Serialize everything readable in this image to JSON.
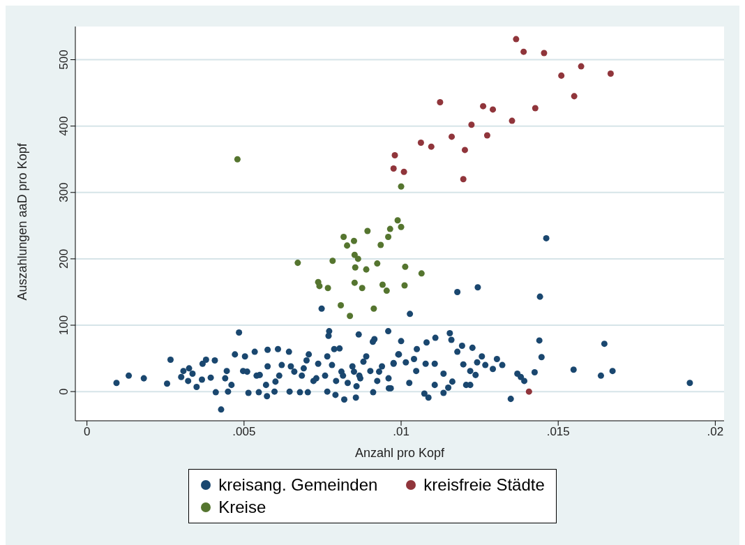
{
  "chart_data": {
    "type": "scatter",
    "xlabel": "Anzahl pro Kopf",
    "ylabel": "Auszahlungen aaD pro Kopf",
    "xlim": [
      -0.00037,
      0.02028
    ],
    "ylim": [
      -44,
      550
    ],
    "xticks": [
      0,
      {
        "value": 0.005,
        "label": ".005"
      },
      {
        "value": 0.01,
        "label": ".01"
      },
      {
        "value": 0.015,
        "label": ".015"
      },
      {
        "value": 0.02,
        "label": ".02"
      }
    ],
    "yticks": [
      0,
      100,
      200,
      300,
      400,
      500
    ],
    "grid": "y",
    "legend": "bottom",
    "marker": "circle",
    "series": [
      {
        "name": "kreisang. Gemeinden",
        "color": "#1a476f",
        "x": [
          0.01462,
          0.01179,
          0.01244,
          0.01442,
          0.01028,
          0.00747,
          0.00484,
          0.00771,
          0.00769,
          0.00959,
          0.00865,
          0.00915,
          0.0091,
          0.0144,
          0.01647,
          0.01447,
          0.01549,
          0.01636,
          0.01673,
          0.01919,
          0.01349,
          0.01425,
          0.01392,
          0.0137,
          0.01381,
          0.01,
          0.01109,
          0.01081,
          0.01155,
          0.0116,
          0.0105,
          0.00991,
          0.01194,
          0.01227,
          0.01179,
          0.01257,
          0.01305,
          0.01322,
          0.01292,
          0.01242,
          0.01268,
          0.01198,
          0.01237,
          0.0122,
          0.01163,
          0.0115,
          0.01135,
          0.01207,
          0.0122,
          0.01087,
          0.01074,
          0.01026,
          0.01107,
          0.01107,
          0.01078,
          0.01048,
          0.00976,
          0.00967,
          0.01135,
          0.01041,
          0.01015,
          0.00094,
          0.00133,
          0.00181,
          0.00255,
          0.00266,
          0.00307,
          0.003,
          0.00325,
          0.00336,
          0.00322,
          0.00349,
          0.00368,
          0.00379,
          0.00407,
          0.00394,
          0.0041,
          0.00366,
          0.00427,
          0.00449,
          0.0046,
          0.00445,
          0.00471,
          0.00503,
          0.00534,
          0.00575,
          0.00608,
          0.00643,
          0.00497,
          0.00514,
          0.00547,
          0.00573,
          0.00597,
          0.0054,
          0.00575,
          0.00612,
          0.00649,
          0.00645,
          0.00678,
          0.00703,
          0.00706,
          0.00699,
          0.00736,
          0.00684,
          0.00721,
          0.00765,
          0.00787,
          0.00804,
          0.00765,
          0.00791,
          0.00819,
          0.00856,
          0.00858,
          0.00911,
          0.00961,
          0.00976,
          0.00993,
          0.00815,
          0.00845,
          0.00889,
          0.00902,
          0.00939,
          0.00867,
          0.00924,
          0.0083,
          0.00793,
          0.00758,
          0.0085,
          0.0088,
          0.0078,
          0.0066,
          0.006,
          0.0055,
          0.0062,
          0.0057,
          0.0069,
          0.0073,
          0.0081,
          0.0087,
          0.0093,
          0.0096,
          0.0051,
          0.0044
        ],
        "values": [
          231,
          150,
          157,
          143,
          117,
          125,
          89,
          91,
          84,
          91,
          86,
          79,
          75,
          77,
          72,
          52,
          33,
          24,
          31,
          13,
          -11,
          29,
          16,
          27,
          22,
          76,
          81,
          74,
          88,
          78,
          64,
          56,
          69,
          66,
          60,
          53,
          49,
          40,
          34,
          44,
          40,
          41,
          25,
          31,
          15,
          6,
          -2,
          10,
          10,
          -9,
          -3,
          13,
          10,
          42,
          42,
          31,
          42,
          5,
          27,
          49,
          44,
          13,
          24,
          20,
          12,
          48,
          31,
          22,
          35,
          27,
          16,
          7,
          42,
          48,
          47,
          21,
          -1,
          18,
          -27,
          0,
          10,
          31,
          56,
          53,
          60,
          63,
          64,
          60,
          31,
          -2,
          -1,
          -7,
          0,
          24,
          38,
          24,
          38,
          0,
          -1,
          -1,
          56,
          47,
          42,
          24,
          16,
          53,
          64,
          65,
          0,
          -5,
          -12,
          -9,
          8,
          -1,
          5,
          43,
          56,
          24,
          38,
          53,
          31,
          38,
          24,
          16,
          13,
          16,
          24,
          30,
          45,
          40,
          30,
          15,
          25,
          40,
          10,
          35,
          20,
          30,
          20,
          30,
          20,
          30,
          20
        ]
      },
      {
        "name": "kreisfreie Städte",
        "color": "#90353b",
        "x": [
          0.01366,
          0.0139,
          0.01455,
          0.01573,
          0.0151,
          0.01667,
          0.01551,
          0.01124,
          0.01261,
          0.01292,
          0.01427,
          0.01353,
          0.01224,
          0.01161,
          0.01274,
          0.01063,
          0.01096,
          0.01203,
          0.0098,
          0.00976,
          0.01009,
          0.01198,
          0.01407
        ],
        "values": [
          531,
          512,
          510,
          490,
          476,
          479,
          445,
          436,
          430,
          425,
          427,
          408,
          402,
          384,
          386,
          375,
          369,
          364,
          356,
          336,
          331,
          320,
          0
        ]
      },
      {
        "name": "Kreise",
        "color": "#55752f",
        "x": [
          0.00479,
          0.01,
          0.00817,
          0.0085,
          0.00828,
          0.00893,
          0.00959,
          0.00935,
          0.00852,
          0.00863,
          0.00924,
          0.00854,
          0.00889,
          0.00671,
          0.00782,
          0.00736,
          0.0074,
          0.00767,
          0.00852,
          0.00876,
          0.00941,
          0.00954,
          0.00808,
          0.00913,
          0.00837,
          0.00989,
          0.01,
          0.00965,
          0.01013,
          0.01011,
          0.01065
        ],
        "values": [
          350,
          309,
          233,
          227,
          220,
          242,
          233,
          221,
          206,
          200,
          193,
          187,
          184,
          194,
          197,
          165,
          159,
          156,
          164,
          156,
          161,
          152,
          130,
          125,
          114,
          258,
          248,
          245,
          188,
          160,
          178
        ]
      }
    ]
  }
}
